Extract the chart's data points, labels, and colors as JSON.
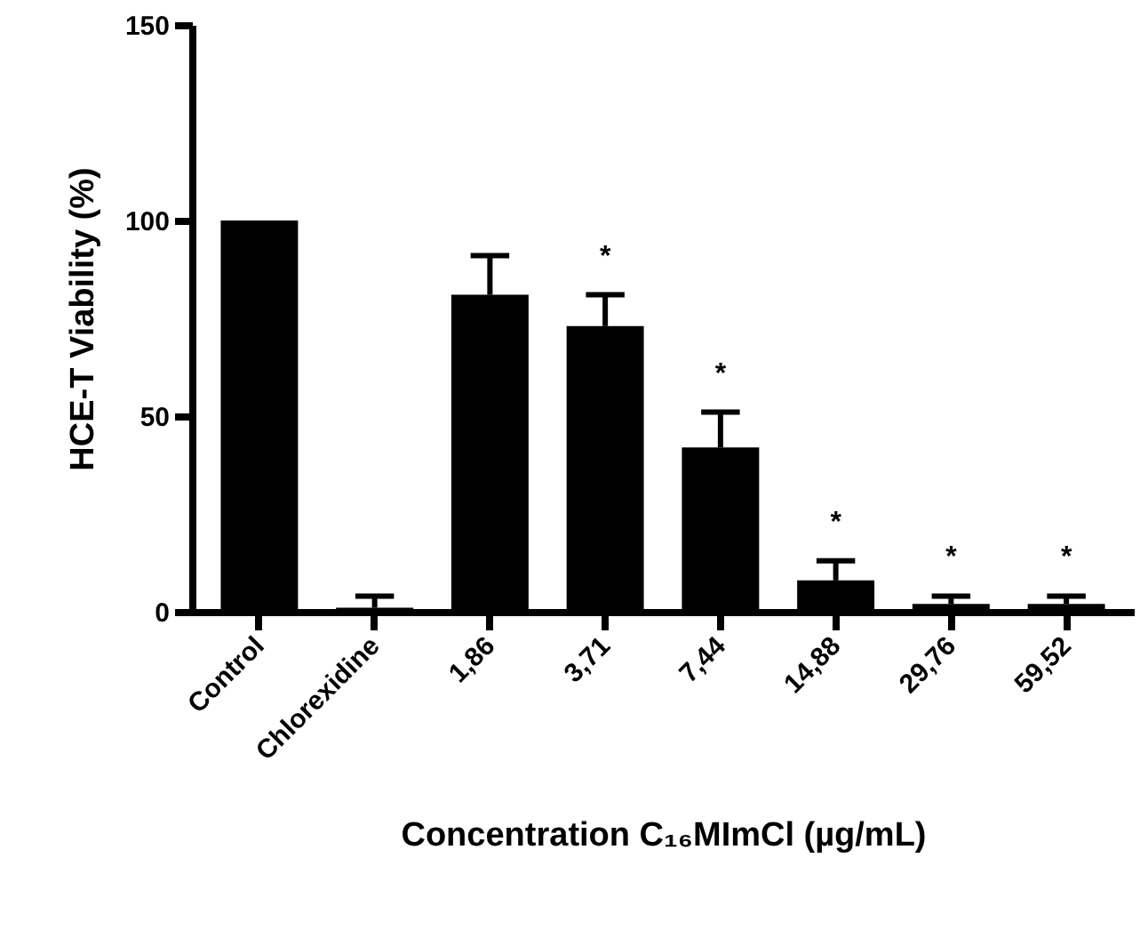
{
  "chart_data": {
    "type": "bar",
    "xlabel": "Concentration C₁₆MImCl (µg/mL)",
    "ylabel": "HCE-T Viability (%)",
    "categories": [
      "Control",
      "Chlorexidine",
      "1,86",
      "3,71",
      "7,44",
      "14,88",
      "29,76",
      "59,52"
    ],
    "values": [
      100,
      1,
      81,
      73,
      42,
      8,
      2,
      2
    ],
    "errors": [
      null,
      3,
      10,
      8,
      9,
      5,
      2,
      2
    ],
    "color": "#000000",
    "ylim": [
      0,
      150
    ],
    "yticks": [
      0,
      50,
      100,
      150
    ],
    "grid": false,
    "annotations": [
      "*",
      "*",
      "*",
      "*",
      "*"
    ]
  }
}
